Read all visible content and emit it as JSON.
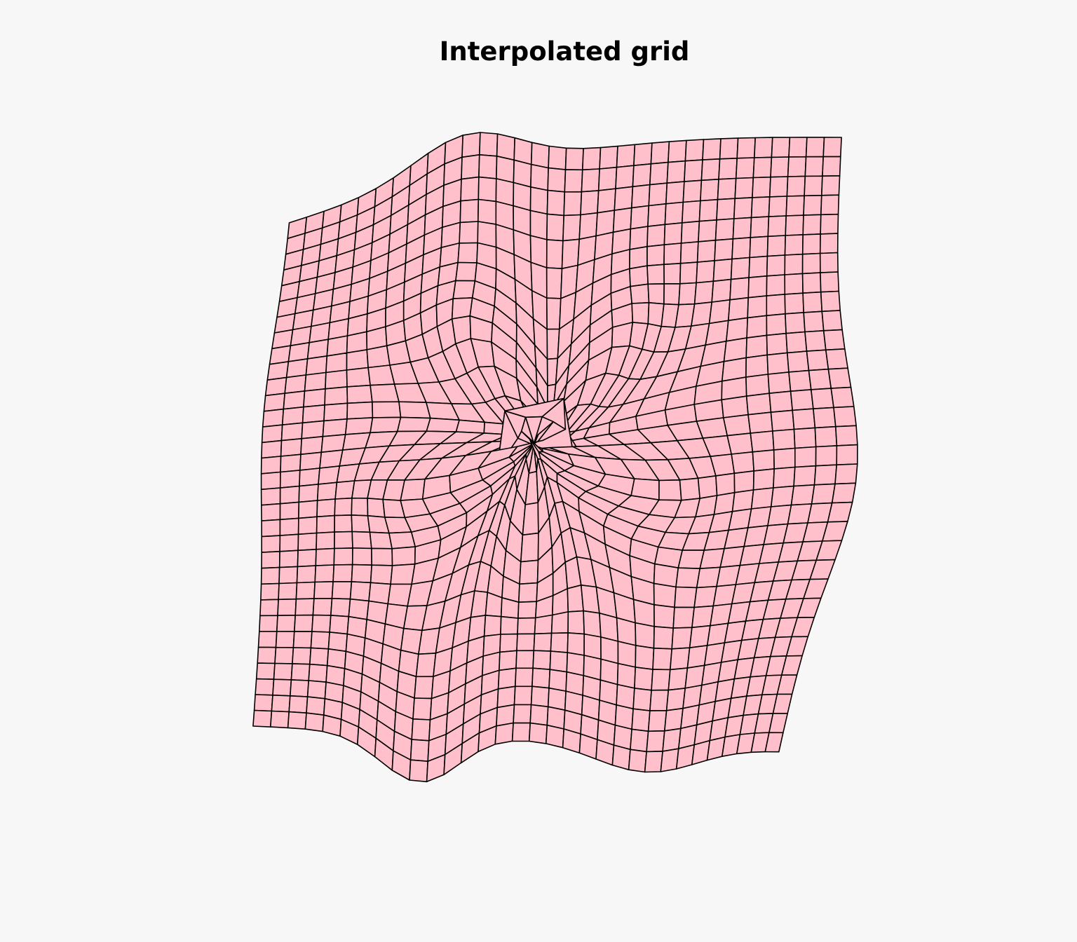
{
  "figure": {
    "title": "Interpolated grid",
    "fill_color": "#ffc0cb",
    "line_color": "#000000",
    "background_color": "#f7f7f7"
  }
}
